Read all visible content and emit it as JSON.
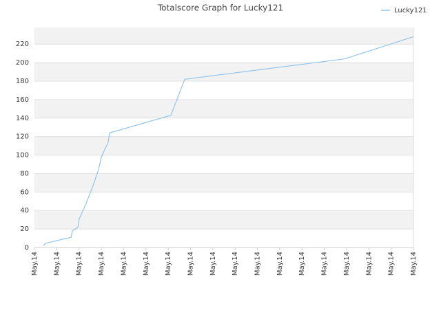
{
  "chart_data": {
    "type": "line",
    "title": "Totalscore Graph for Lucky121",
    "x": [
      0.4,
      0.49,
      1.64,
      1.7,
      1.95,
      2.01,
      2.32,
      2.63,
      2.87,
      3.0,
      3.31,
      3.37,
      6.12,
      6.74,
      13.91,
      17.0
    ],
    "series": [
      {
        "name": "Lucky121",
        "color": "#92c5ee",
        "values": [
          2,
          4.5,
          11,
          18,
          22,
          31,
          48,
          67,
          84,
          98,
          114,
          124,
          143,
          182,
          204,
          228
        ]
      }
    ],
    "xlim": [
      0,
      17
    ],
    "xticks": [
      {
        "value": 0,
        "label": "May.14"
      },
      {
        "value": 1,
        "label": "May.14"
      },
      {
        "value": 2,
        "label": "May.14"
      },
      {
        "value": 3,
        "label": "May.14"
      },
      {
        "value": 4,
        "label": "May.14"
      },
      {
        "value": 5,
        "label": "May.14"
      },
      {
        "value": 6,
        "label": "May.14"
      },
      {
        "value": 7,
        "label": "May.14"
      },
      {
        "value": 8,
        "label": "May.14"
      },
      {
        "value": 9,
        "label": "May.14"
      },
      {
        "value": 10,
        "label": "May.14"
      },
      {
        "value": 11,
        "label": "May.14"
      },
      {
        "value": 12,
        "label": "May.14"
      },
      {
        "value": 13,
        "label": "May.14"
      },
      {
        "value": 14,
        "label": "May.14"
      },
      {
        "value": 15,
        "label": "May.14"
      },
      {
        "value": 16,
        "label": "May.14"
      },
      {
        "value": 17,
        "label": "May.14"
      }
    ],
    "ylim": [
      0,
      238
    ],
    "yticks": [
      0,
      20,
      40,
      60,
      80,
      100,
      120,
      140,
      160,
      180,
      200,
      220
    ],
    "grid": true,
    "legend": "top-right"
  }
}
